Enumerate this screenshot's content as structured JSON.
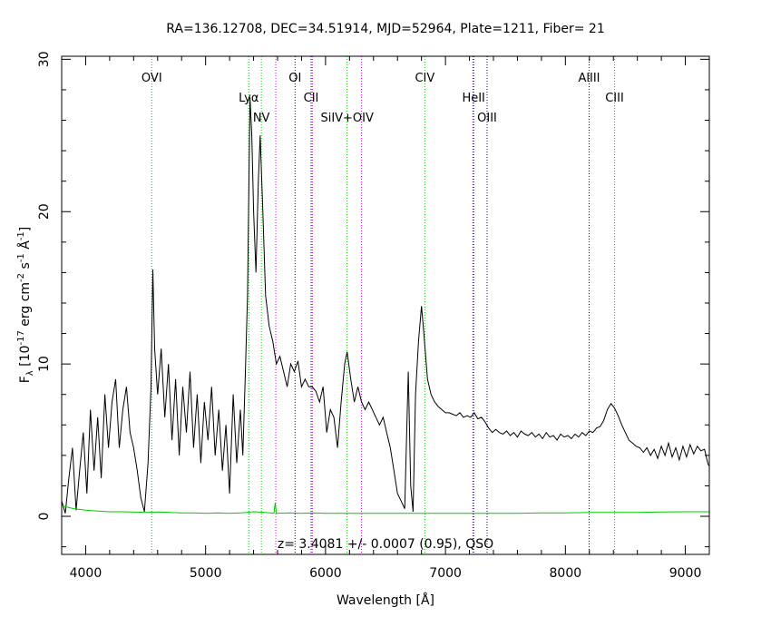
{
  "chart_data": {
    "type": "line",
    "title": "RA=136.12708, DEC=34.51914, MJD=52964, Plate=1211, Fiber= 21",
    "xlabel": "Wavelength [Å]",
    "ylabel": {
      "main": "F",
      "sub": "λ",
      "body": " [10",
      "exp1": "-17",
      "mid1": " erg cm",
      "exp2": "-2",
      "mid2": " s",
      "exp3": "-1",
      "mid3": " Å",
      "exp4": "-1",
      "end": "]"
    },
    "annotation": "z= 3.4081 +/- 0.0007 (0.95), QSO",
    "xlim": [
      3800,
      9200
    ],
    "ylim": [
      -2.5,
      30.2
    ],
    "xticks": [
      4000,
      5000,
      6000,
      7000,
      8000,
      9000
    ],
    "yticks": [
      0,
      10,
      20,
      30
    ],
    "lines": [
      {
        "label": "OVI",
        "x": 4551,
        "color": "#00cc00",
        "row": 0
      },
      {
        "label": "Lyα",
        "x": 5360,
        "color": "#00cc00",
        "row": 1
      },
      {
        "label": "NV",
        "x": 5465,
        "color": "#00cc00",
        "row": 2
      },
      {
        "label": "",
        "x": 5585,
        "color": "#cc00cc",
        "row": 0
      },
      {
        "label": "OI",
        "x": 5746,
        "color": "#000080",
        "row": 0
      },
      {
        "label": "CII",
        "x": 5880,
        "color": "#000080",
        "row": 1
      },
      {
        "label": "",
        "x": 5890,
        "color": "#cc00cc",
        "row": 0
      },
      {
        "label": "SiIV+OIV",
        "x": 6180,
        "color": "#00cc00",
        "row": 2
      },
      {
        "label": "",
        "x": 6300,
        "color": "#cc00cc",
        "row": 0
      },
      {
        "label": "CIV",
        "x": 6828,
        "color": "#00cc00",
        "row": 0
      },
      {
        "label": "",
        "x": 7228,
        "color": "#cc00cc",
        "row": 0
      },
      {
        "label": "HeII",
        "x": 7235,
        "color": "#000080",
        "row": 1
      },
      {
        "label": "OIII",
        "x": 7347,
        "color": "#000080",
        "row": 2
      },
      {
        "label": "AlIII",
        "x": 8198,
        "color": "#000080",
        "row": 0
      },
      {
        "label": "CIII",
        "x": 8410,
        "color": "#00cc00",
        "row": 1
      }
    ],
    "series": [
      {
        "name": "flux",
        "color": "#000000",
        "points": [
          [
            3800,
            1.0
          ],
          [
            3830,
            0.2
          ],
          [
            3860,
            2.5
          ],
          [
            3890,
            4.5
          ],
          [
            3920,
            0.4
          ],
          [
            3950,
            3.0
          ],
          [
            3980,
            5.5
          ],
          [
            4010,
            1.5
          ],
          [
            4040,
            7.0
          ],
          [
            4070,
            3.0
          ],
          [
            4100,
            6.5
          ],
          [
            4130,
            2.5
          ],
          [
            4160,
            8.0
          ],
          [
            4190,
            4.5
          ],
          [
            4220,
            7.5
          ],
          [
            4250,
            9.0
          ],
          [
            4280,
            4.5
          ],
          [
            4310,
            7.0
          ],
          [
            4340,
            8.5
          ],
          [
            4370,
            5.5
          ],
          [
            4400,
            4.5
          ],
          [
            4430,
            3.0
          ],
          [
            4460,
            1.2
          ],
          [
            4490,
            0.3
          ],
          [
            4520,
            3.5
          ],
          [
            4545,
            8.5
          ],
          [
            4560,
            16.2
          ],
          [
            4575,
            11.0
          ],
          [
            4600,
            8.0
          ],
          [
            4630,
            11.0
          ],
          [
            4660,
            6.5
          ],
          [
            4690,
            10.0
          ],
          [
            4720,
            5.0
          ],
          [
            4750,
            9.0
          ],
          [
            4780,
            4.0
          ],
          [
            4810,
            8.5
          ],
          [
            4840,
            5.5
          ],
          [
            4870,
            9.5
          ],
          [
            4900,
            4.5
          ],
          [
            4930,
            8.0
          ],
          [
            4960,
            3.5
          ],
          [
            4990,
            7.5
          ],
          [
            5020,
            5.0
          ],
          [
            5050,
            8.5
          ],
          [
            5080,
            4.0
          ],
          [
            5110,
            7.0
          ],
          [
            5140,
            3.0
          ],
          [
            5170,
            6.0
          ],
          [
            5200,
            1.5
          ],
          [
            5230,
            8.0
          ],
          [
            5260,
            3.5
          ],
          [
            5290,
            7.0
          ],
          [
            5310,
            4.0
          ],
          [
            5330,
            9.0
          ],
          [
            5350,
            14.5
          ],
          [
            5370,
            27.5
          ],
          [
            5385,
            25.0
          ],
          [
            5400,
            20.0
          ],
          [
            5420,
            16.0
          ],
          [
            5440,
            22.0
          ],
          [
            5455,
            25.0
          ],
          [
            5475,
            20.5
          ],
          [
            5500,
            14.5
          ],
          [
            5530,
            12.5
          ],
          [
            5560,
            11.5
          ],
          [
            5590,
            10.0
          ],
          [
            5620,
            10.5
          ],
          [
            5650,
            9.5
          ],
          [
            5680,
            8.5
          ],
          [
            5710,
            10.0
          ],
          [
            5740,
            9.5
          ],
          [
            5770,
            10.2
          ],
          [
            5800,
            8.5
          ],
          [
            5830,
            9.0
          ],
          [
            5860,
            8.5
          ],
          [
            5890,
            8.5
          ],
          [
            5920,
            8.2
          ],
          [
            5950,
            7.5
          ],
          [
            5980,
            8.5
          ],
          [
            6010,
            5.5
          ],
          [
            6040,
            7.0
          ],
          [
            6070,
            6.5
          ],
          [
            6100,
            4.5
          ],
          [
            6130,
            7.5
          ],
          [
            6160,
            10.0
          ],
          [
            6180,
            10.8
          ],
          [
            6210,
            9.0
          ],
          [
            6240,
            7.5
          ],
          [
            6270,
            8.5
          ],
          [
            6300,
            7.5
          ],
          [
            6330,
            7.0
          ],
          [
            6360,
            7.5
          ],
          [
            6390,
            7.0
          ],
          [
            6420,
            6.5
          ],
          [
            6450,
            6.0
          ],
          [
            6480,
            6.5
          ],
          [
            6510,
            5.5
          ],
          [
            6540,
            4.5
          ],
          [
            6570,
            3.0
          ],
          [
            6600,
            1.5
          ],
          [
            6630,
            1.0
          ],
          [
            6660,
            0.5
          ],
          [
            6690,
            9.5
          ],
          [
            6710,
            2.0
          ],
          [
            6730,
            0.3
          ],
          [
            6750,
            8.0
          ],
          [
            6775,
            11.5
          ],
          [
            6800,
            13.8
          ],
          [
            6820,
            12.0
          ],
          [
            6850,
            9.0
          ],
          [
            6880,
            8.0
          ],
          [
            6910,
            7.5
          ],
          [
            6940,
            7.2
          ],
          [
            6970,
            7.0
          ],
          [
            7000,
            6.8
          ],
          [
            7030,
            6.8
          ],
          [
            7060,
            6.7
          ],
          [
            7090,
            6.6
          ],
          [
            7120,
            6.8
          ],
          [
            7150,
            6.5
          ],
          [
            7180,
            6.6
          ],
          [
            7210,
            6.5
          ],
          [
            7240,
            6.8
          ],
          [
            7270,
            6.4
          ],
          [
            7300,
            6.5
          ],
          [
            7330,
            6.2
          ],
          [
            7360,
            5.8
          ],
          [
            7390,
            5.5
          ],
          [
            7420,
            5.7
          ],
          [
            7450,
            5.5
          ],
          [
            7480,
            5.4
          ],
          [
            7510,
            5.6
          ],
          [
            7540,
            5.3
          ],
          [
            7570,
            5.5
          ],
          [
            7600,
            5.2
          ],
          [
            7630,
            5.6
          ],
          [
            7660,
            5.4
          ],
          [
            7690,
            5.3
          ],
          [
            7720,
            5.5
          ],
          [
            7750,
            5.2
          ],
          [
            7780,
            5.4
          ],
          [
            7810,
            5.1
          ],
          [
            7840,
            5.5
          ],
          [
            7870,
            5.2
          ],
          [
            7900,
            5.3
          ],
          [
            7930,
            5.0
          ],
          [
            7960,
            5.4
          ],
          [
            7990,
            5.2
          ],
          [
            8020,
            5.3
          ],
          [
            8050,
            5.1
          ],
          [
            8080,
            5.4
          ],
          [
            8110,
            5.2
          ],
          [
            8140,
            5.5
          ],
          [
            8170,
            5.3
          ],
          [
            8200,
            5.6
          ],
          [
            8230,
            5.5
          ],
          [
            8260,
            5.8
          ],
          [
            8290,
            5.9
          ],
          [
            8320,
            6.3
          ],
          [
            8350,
            7.0
          ],
          [
            8380,
            7.4
          ],
          [
            8410,
            7.1
          ],
          [
            8440,
            6.6
          ],
          [
            8470,
            6.0
          ],
          [
            8500,
            5.5
          ],
          [
            8530,
            5.0
          ],
          [
            8560,
            4.8
          ],
          [
            8590,
            4.6
          ],
          [
            8620,
            4.5
          ],
          [
            8650,
            4.2
          ],
          [
            8680,
            4.5
          ],
          [
            8710,
            4.0
          ],
          [
            8740,
            4.4
          ],
          [
            8770,
            3.8
          ],
          [
            8800,
            4.6
          ],
          [
            8830,
            4.0
          ],
          [
            8860,
            4.8
          ],
          [
            8890,
            3.9
          ],
          [
            8920,
            4.5
          ],
          [
            8950,
            3.7
          ],
          [
            8980,
            4.6
          ],
          [
            9010,
            3.9
          ],
          [
            9040,
            4.7
          ],
          [
            9070,
            4.1
          ],
          [
            9100,
            4.6
          ],
          [
            9130,
            4.3
          ],
          [
            9160,
            4.4
          ],
          [
            9190,
            3.4
          ],
          [
            9200,
            3.3
          ]
        ]
      },
      {
        "name": "error",
        "color": "#00cc00",
        "points": [
          [
            3800,
            0.7
          ],
          [
            3900,
            0.5
          ],
          [
            4000,
            0.4
          ],
          [
            4100,
            0.35
          ],
          [
            4200,
            0.3
          ],
          [
            4300,
            0.3
          ],
          [
            4400,
            0.28
          ],
          [
            4500,
            0.25
          ],
          [
            4600,
            0.28
          ],
          [
            4700,
            0.25
          ],
          [
            4800,
            0.22
          ],
          [
            4900,
            0.22
          ],
          [
            5000,
            0.2
          ],
          [
            5100,
            0.22
          ],
          [
            5200,
            0.2
          ],
          [
            5300,
            0.22
          ],
          [
            5400,
            0.3
          ],
          [
            5500,
            0.25
          ],
          [
            5570,
            0.2
          ],
          [
            5580,
            0.9
          ],
          [
            5590,
            0.2
          ],
          [
            5700,
            0.22
          ],
          [
            5800,
            0.2
          ],
          [
            5900,
            0.22
          ],
          [
            6000,
            0.2
          ],
          [
            6200,
            0.2
          ],
          [
            6400,
            0.2
          ],
          [
            6600,
            0.2
          ],
          [
            6800,
            0.2
          ],
          [
            7000,
            0.2
          ],
          [
            7200,
            0.2
          ],
          [
            7400,
            0.2
          ],
          [
            7600,
            0.2
          ],
          [
            7800,
            0.22
          ],
          [
            8000,
            0.22
          ],
          [
            8200,
            0.25
          ],
          [
            8400,
            0.25
          ],
          [
            8600,
            0.25
          ],
          [
            8800,
            0.28
          ],
          [
            9000,
            0.3
          ],
          [
            9200,
            0.3
          ]
        ]
      }
    ]
  }
}
